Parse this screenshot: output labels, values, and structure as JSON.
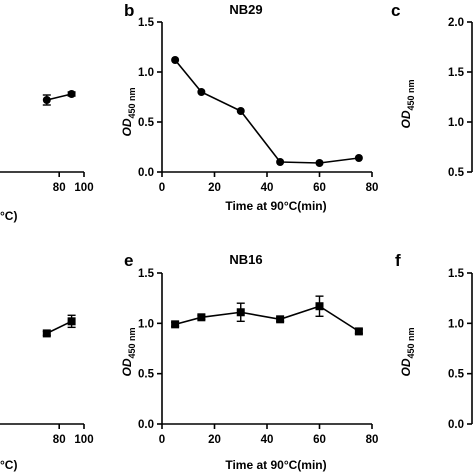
{
  "figure": {
    "panels": [
      {
        "letter": "",
        "title": "",
        "xlabel": "°C)",
        "ylabel_main": "",
        "ylabel_sub": ""
      },
      {
        "letter": "b",
        "title": "NB29",
        "xlabel": "Time at 90°C(min)",
        "ylabel_main": "OD",
        "ylabel_sub": "450 nm"
      },
      {
        "letter": "c",
        "title": "",
        "xlabel": "",
        "ylabel_main": "OD",
        "ylabel_sub": "450 nm"
      },
      {
        "letter": "",
        "title": "",
        "xlabel": "°C)",
        "ylabel_main": "",
        "ylabel_sub": ""
      },
      {
        "letter": "e",
        "title": "NB16",
        "xlabel": "Time at 90°C(min)",
        "ylabel_main": "OD",
        "ylabel_sub": "450 nm"
      },
      {
        "letter": "f",
        "title": "",
        "xlabel": "",
        "ylabel_main": "OD",
        "ylabel_sub": "450 nm"
      }
    ]
  },
  "chart_data": [
    {
      "panel": "a (partial)",
      "type": "line",
      "marker": "circle",
      "x": [
        70,
        90
      ],
      "y": [
        0.72,
        0.78
      ],
      "yerr": [
        0.05,
        0.02
      ],
      "xlim": [
        0,
        100
      ],
      "xticks": [
        80,
        100
      ],
      "ylim": [
        0,
        1.5
      ],
      "xlabel": "°C)"
    },
    {
      "panel": "b",
      "type": "line",
      "marker": "circle",
      "title": "NB29",
      "x": [
        5,
        15,
        30,
        45,
        60,
        75
      ],
      "y": [
        1.12,
        0.8,
        0.61,
        0.1,
        0.09,
        0.14
      ],
      "xlim": [
        0,
        80
      ],
      "xticks": [
        0,
        20,
        40,
        60,
        80
      ],
      "ylim": [
        0,
        1.5
      ],
      "yticks": [
        "0.0",
        "0.5",
        "1.0",
        "1.5"
      ],
      "xlabel": "Time at 90°C(min)",
      "ylabel": "OD450 nm"
    },
    {
      "panel": "c (partial)",
      "type": "line",
      "x": [],
      "y": [],
      "ylim": [
        0.5,
        2.0
      ],
      "yticks": [
        "0.5",
        "1.0",
        "1.5",
        "2.0"
      ],
      "ylabel": "OD450 nm"
    },
    {
      "panel": "d (partial)",
      "type": "line",
      "marker": "square",
      "x": [
        70,
        90
      ],
      "y": [
        0.9,
        1.02
      ],
      "yerr": [
        0.02,
        0.06
      ],
      "xlim": [
        0,
        100
      ],
      "xticks": [
        80,
        100
      ],
      "ylim": [
        0,
        1.5
      ],
      "xlabel": "°C)"
    },
    {
      "panel": "e",
      "type": "line",
      "marker": "square",
      "title": "NB16",
      "x": [
        5,
        15,
        30,
        45,
        60,
        75
      ],
      "y": [
        0.99,
        1.06,
        1.11,
        1.04,
        1.17,
        0.92
      ],
      "yerr": [
        0.02,
        0.02,
        0.09,
        0.02,
        0.1,
        0.02
      ],
      "xlim": [
        0,
        80
      ],
      "xticks": [
        0,
        20,
        40,
        60,
        80
      ],
      "ylim": [
        0,
        1.5
      ],
      "yticks": [
        "0.0",
        "0.5",
        "1.0",
        "1.5"
      ],
      "xlabel": "Time at 90°C(min)",
      "ylabel": "OD450 nm"
    },
    {
      "panel": "f (partial)",
      "type": "line",
      "x": [],
      "y": [],
      "ylim": [
        0,
        1.5
      ],
      "yticks": [
        "0.0",
        "0.5",
        "1.0",
        "1.5"
      ],
      "ylabel": "OD450 nm"
    }
  ]
}
